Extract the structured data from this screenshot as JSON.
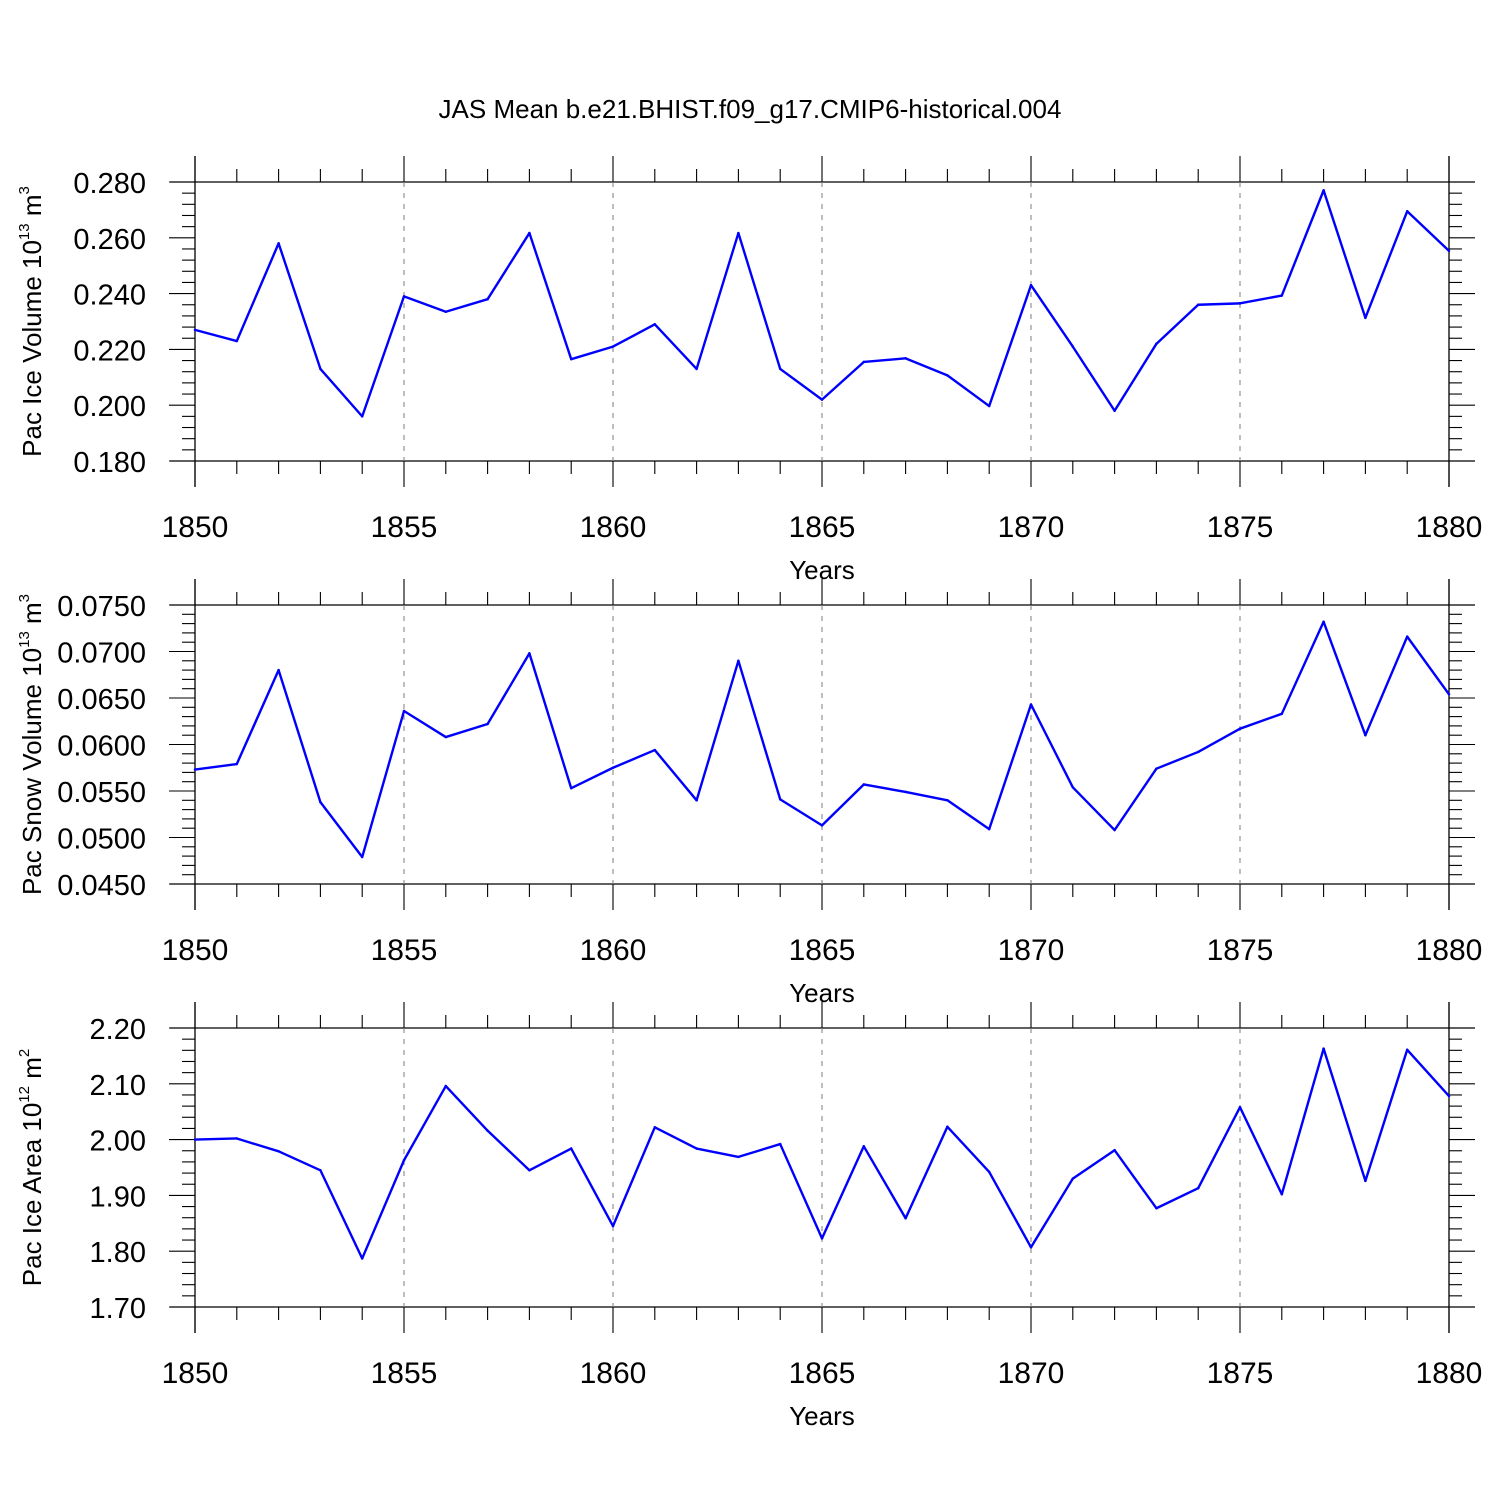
{
  "chart_data": {
    "title": "JAS Mean b.e21.BHIST.f09_g17.CMIP6-historical.004",
    "colors": {
      "line": "#0000ff",
      "axis": "#000000",
      "grid": "#888888"
    },
    "panels": [
      {
        "type": "line",
        "ylabel": "Pac Ice Volume 10",
        "ylabel_exp": "13",
        "ylabel_unit": " m",
        "ylabel_unit_exp": "3",
        "xlabel": "Years",
        "xlim": [
          1850,
          1880
        ],
        "ylim": [
          0.18,
          0.28
        ],
        "yticks": [
          "0.180",
          "0.200",
          "0.220",
          "0.240",
          "0.260",
          "0.280"
        ],
        "xticks": [
          "1850",
          "1855",
          "1860",
          "1865",
          "1870",
          "1875",
          "1880"
        ],
        "grid_x": true,
        "x": [
          1850,
          1851,
          1852,
          1853,
          1854,
          1855,
          1856,
          1857,
          1858,
          1859,
          1860,
          1861,
          1862,
          1863,
          1864,
          1865,
          1866,
          1867,
          1868,
          1869,
          1870,
          1871,
          1872,
          1873,
          1874,
          1875,
          1876,
          1877,
          1878,
          1879,
          1880
        ],
        "values": [
          0.227,
          0.223,
          0.258,
          0.213,
          0.196,
          0.239,
          0.2335,
          0.238,
          0.2617,
          0.2165,
          0.221,
          0.229,
          0.213,
          0.2617,
          0.213,
          0.202,
          0.2155,
          0.2168,
          0.2107,
          0.1997,
          0.243,
          0.221,
          0.198,
          0.222,
          0.236,
          0.2365,
          0.2393,
          0.277,
          0.2313,
          0.2695,
          0.2553
        ]
      },
      {
        "type": "line",
        "ylabel": "Pac Snow Volume 10",
        "ylabel_exp": "13",
        "ylabel_unit": " m",
        "ylabel_unit_exp": "3",
        "xlabel": "Years",
        "xlim": [
          1850,
          1880
        ],
        "ylim": [
          0.045,
          0.075
        ],
        "yticks": [
          "0.0450",
          "0.0500",
          "0.0550",
          "0.0600",
          "0.0650",
          "0.0700",
          "0.0750"
        ],
        "xticks": [
          "1850",
          "1855",
          "1860",
          "1865",
          "1870",
          "1875",
          "1880"
        ],
        "grid_x": true,
        "x": [
          1850,
          1851,
          1852,
          1853,
          1854,
          1855,
          1856,
          1857,
          1858,
          1859,
          1860,
          1861,
          1862,
          1863,
          1864,
          1865,
          1866,
          1867,
          1868,
          1869,
          1870,
          1871,
          1872,
          1873,
          1874,
          1875,
          1876,
          1877,
          1878,
          1879,
          1880
        ],
        "values": [
          0.0573,
          0.0579,
          0.068,
          0.0538,
          0.0479,
          0.0636,
          0.0608,
          0.0622,
          0.0698,
          0.0553,
          0.0575,
          0.0594,
          0.054,
          0.069,
          0.0541,
          0.0513,
          0.0557,
          0.0549,
          0.054,
          0.0509,
          0.0643,
          0.0554,
          0.0508,
          0.0574,
          0.0592,
          0.0617,
          0.0633,
          0.0732,
          0.061,
          0.0716,
          0.0654
        ]
      },
      {
        "type": "line",
        "ylabel": "Pac Ice Area 10",
        "ylabel_exp": "12",
        "ylabel_unit": " m",
        "ylabel_unit_exp": "2",
        "xlabel": "Years",
        "xlim": [
          1850,
          1880
        ],
        "ylim": [
          1.7,
          2.2
        ],
        "yticks": [
          "1.70",
          "1.80",
          "1.90",
          "2.00",
          "2.10",
          "2.20"
        ],
        "xticks": [
          "1850",
          "1855",
          "1860",
          "1865",
          "1870",
          "1875",
          "1880"
        ],
        "grid_x": true,
        "x": [
          1850,
          1851,
          1852,
          1853,
          1854,
          1855,
          1856,
          1857,
          1858,
          1859,
          1860,
          1861,
          1862,
          1863,
          1864,
          1865,
          1866,
          1867,
          1868,
          1869,
          1870,
          1871,
          1872,
          1873,
          1874,
          1875,
          1876,
          1877,
          1878,
          1879,
          1880
        ],
        "values": [
          2.0,
          2.002,
          1.979,
          1.945,
          1.787,
          1.963,
          2.096,
          2.016,
          1.945,
          1.984,
          1.845,
          2.022,
          1.984,
          1.969,
          1.992,
          1.823,
          1.988,
          1.859,
          2.023,
          1.942,
          1.807,
          1.93,
          1.981,
          1.877,
          1.913,
          2.058,
          1.902,
          2.163,
          1.926,
          2.161,
          2.078
        ]
      }
    ]
  }
}
